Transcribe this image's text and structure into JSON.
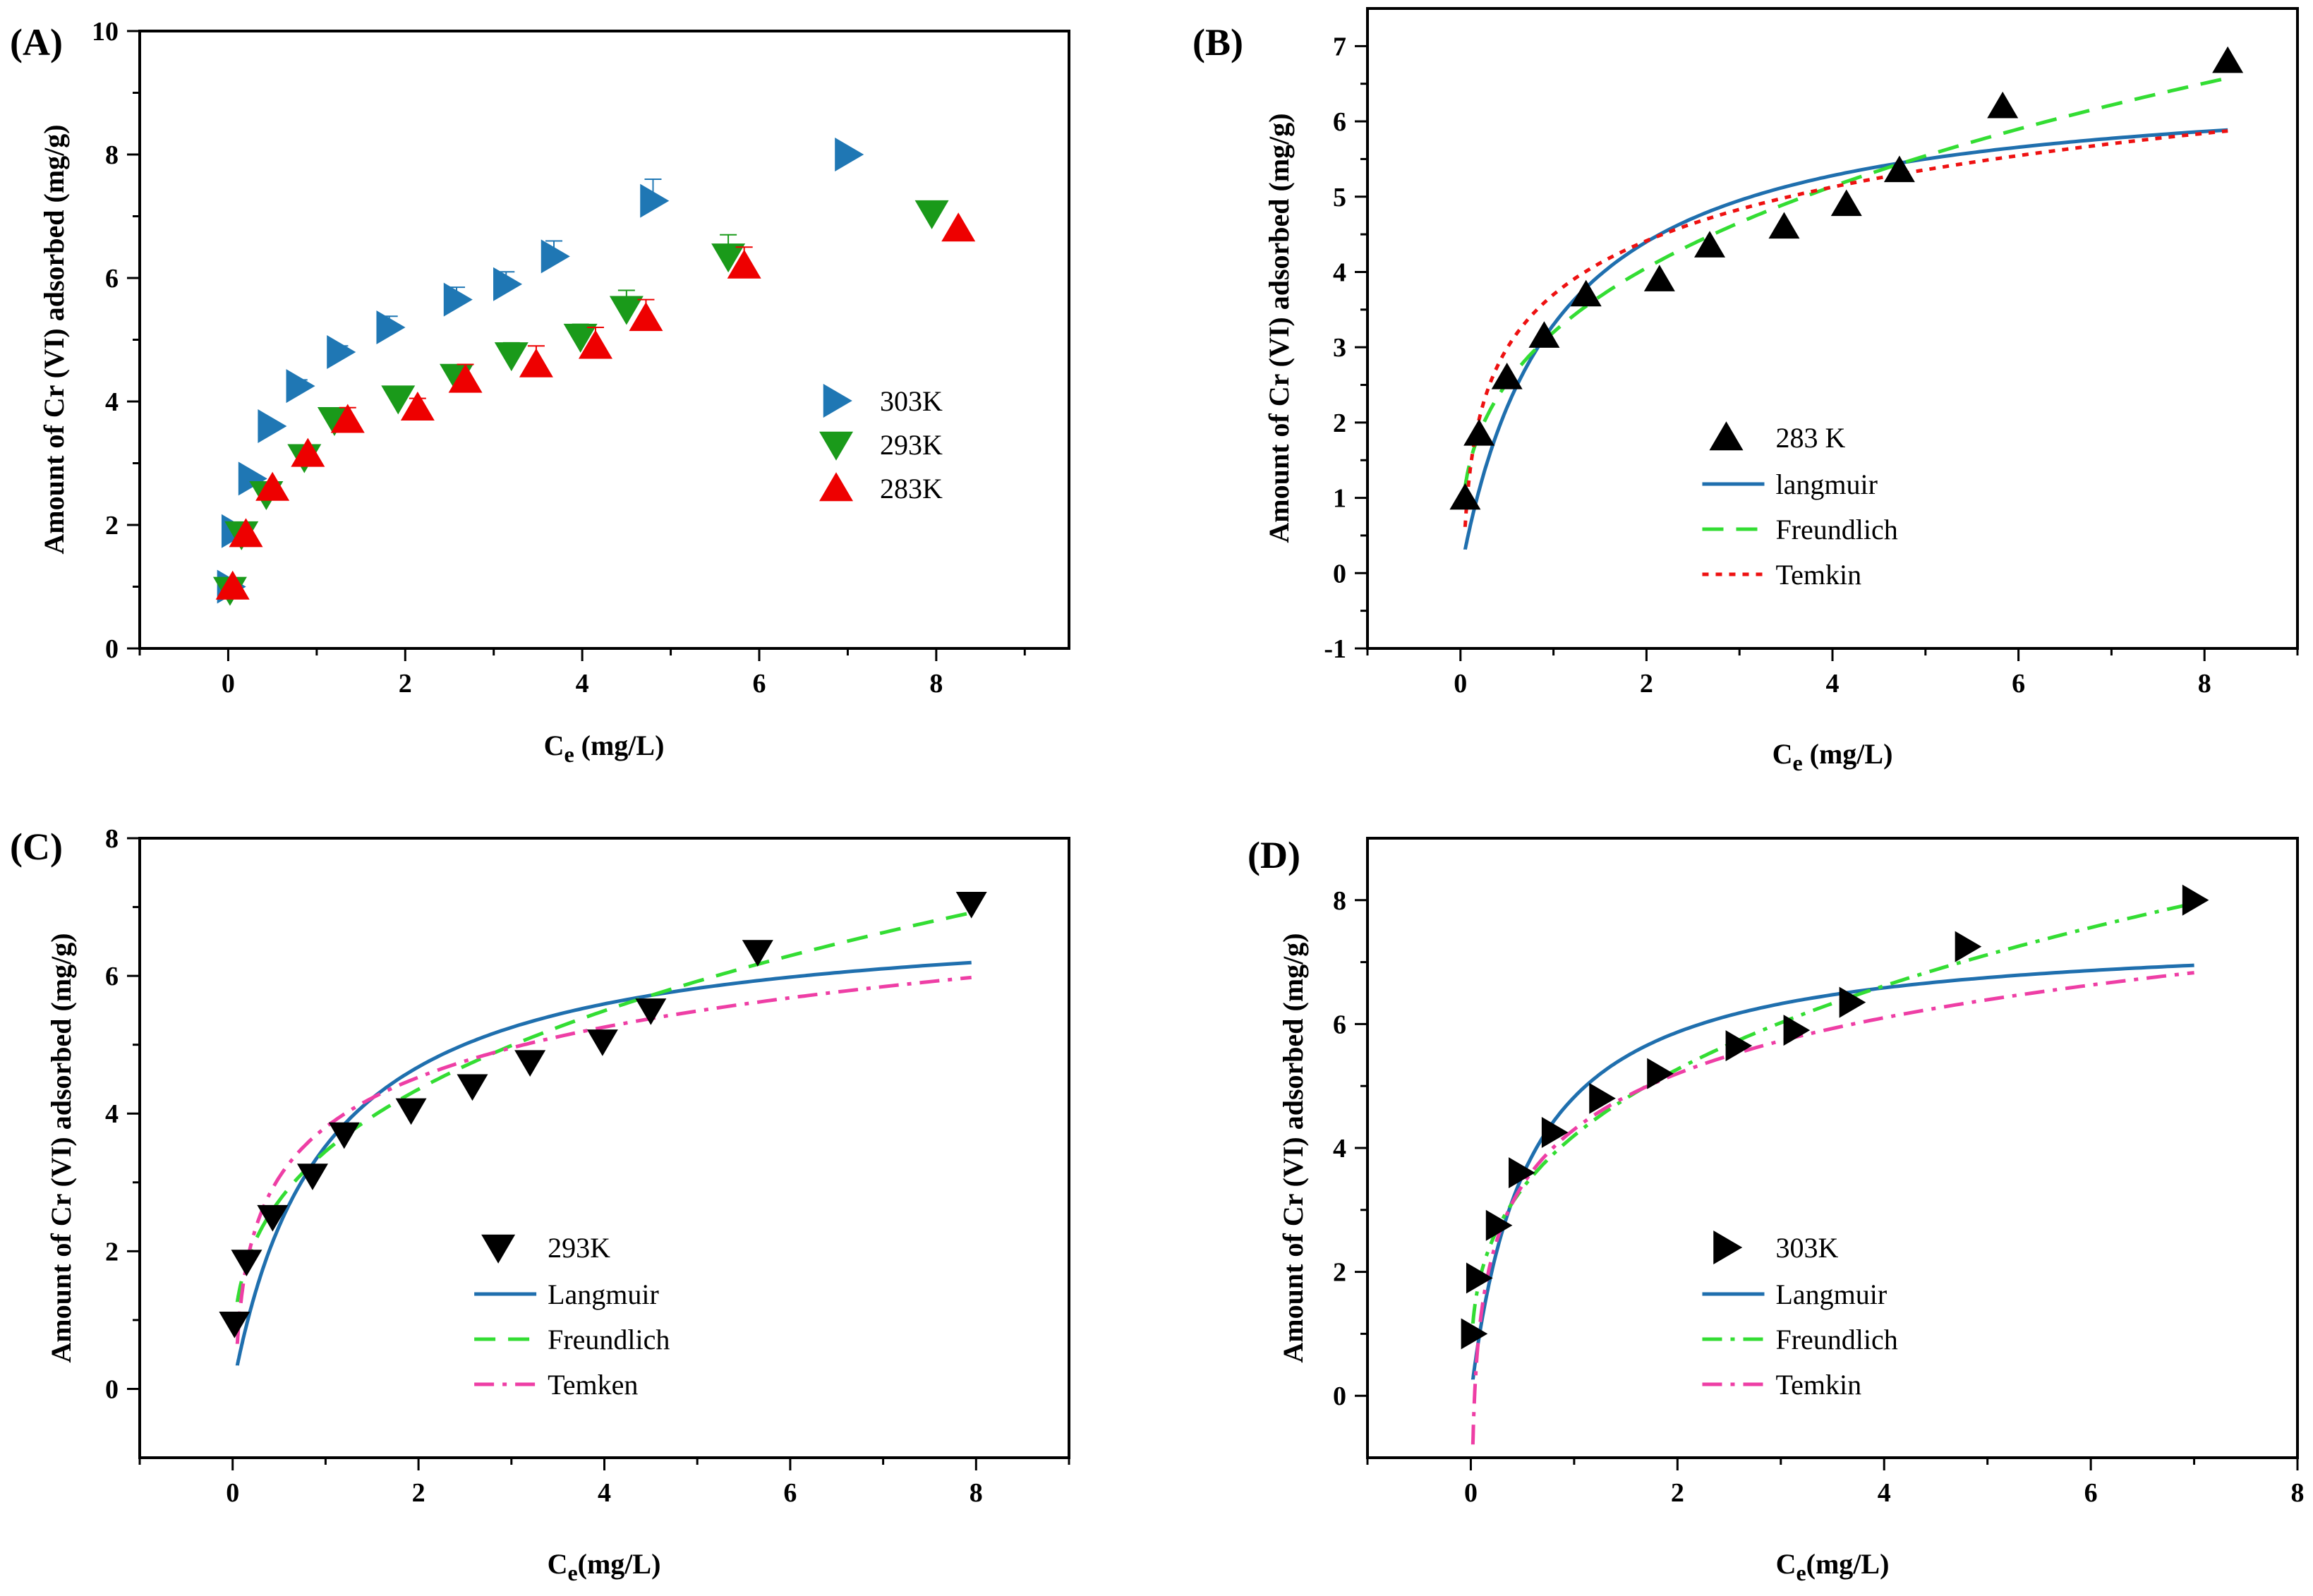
{
  "figure": {
    "panels": [
      "(A)",
      "(B)",
      "(C)",
      "(D)"
    ]
  },
  "chart_data": [
    {
      "panel": "(A)",
      "type": "scatter",
      "xlabel_main": "C",
      "xlabel_sub": "e",
      "xlabel_rest": " (mg/L)",
      "ylabel": "Amount of Cr (VI) adsorbed (mg/g)",
      "xlim": [
        -1,
        9.5
      ],
      "ylim": [
        0,
        10
      ],
      "xticks": [
        0,
        2,
        4,
        6,
        8
      ],
      "yticks": [
        0,
        2,
        4,
        6,
        8,
        10
      ],
      "legend_position": "right-middle",
      "series": [
        {
          "name": "303K",
          "marker": "triangle-right",
          "color": "#1f77b4",
          "x": [
            0.02,
            0.07,
            0.26,
            0.48,
            0.8,
            1.26,
            1.82,
            2.58,
            3.14,
            3.68,
            4.8,
            7.0
          ],
          "y": [
            1.0,
            1.9,
            2.75,
            3.6,
            4.25,
            4.8,
            5.2,
            5.65,
            5.9,
            6.35,
            7.25,
            8.0
          ],
          "err": [
            0,
            0,
            0,
            0,
            0.1,
            0.1,
            0.18,
            0.2,
            0.2,
            0.25,
            0.35,
            0
          ]
        },
        {
          "name": "293K",
          "marker": "triangle-down",
          "color": "#1a9a1a",
          "x": [
            0.02,
            0.15,
            0.43,
            0.86,
            1.2,
            1.92,
            2.58,
            3.2,
            3.98,
            4.5,
            5.65,
            7.95
          ],
          "y": [
            0.95,
            1.85,
            2.5,
            3.1,
            3.7,
            4.05,
            4.4,
            4.75,
            5.05,
            5.5,
            6.35,
            7.05
          ],
          "err": [
            0,
            0,
            0,
            0,
            0,
            0.15,
            0.15,
            0.2,
            0.2,
            0.3,
            0.35,
            0
          ]
        },
        {
          "name": "283K",
          "marker": "triangle-up",
          "color": "#ee0000",
          "x": [
            0.05,
            0.2,
            0.5,
            0.9,
            1.35,
            2.14,
            2.68,
            3.48,
            4.15,
            4.72,
            5.83,
            8.25
          ],
          "y": [
            1.0,
            1.85,
            2.6,
            3.15,
            3.7,
            3.9,
            4.35,
            4.6,
            4.9,
            5.35,
            6.2,
            6.8
          ],
          "err": [
            0,
            0,
            0,
            0,
            0.2,
            0.15,
            0.25,
            0.3,
            0.3,
            0.3,
            0.3,
            0
          ]
        }
      ]
    },
    {
      "panel": "(B)",
      "type": "scatter",
      "xlabel_main": "C",
      "xlabel_sub": "e",
      "xlabel_rest": " (mg/L)",
      "ylabel": "Amount of Cr (VI) adsorbed (mg/g)",
      "xlim": [
        -1,
        9
      ],
      "ylim": [
        -1,
        7.5
      ],
      "xticks": [
        0,
        2,
        4,
        6,
        8
      ],
      "yticks": [
        -1,
        0,
        1,
        2,
        3,
        4,
        5,
        6,
        7
      ],
      "legend_position": "right-middle",
      "points": {
        "name": "283 K",
        "marker": "triangle-up",
        "color": "#000000",
        "x": [
          0.05,
          0.2,
          0.5,
          0.9,
          1.35,
          2.14,
          2.68,
          3.48,
          4.15,
          4.72,
          5.83,
          8.25
        ],
        "y": [
          1.0,
          1.85,
          2.6,
          3.15,
          3.7,
          3.9,
          4.35,
          4.6,
          4.9,
          5.35,
          6.2,
          6.8
        ]
      },
      "fits": [
        {
          "name": "langmuir",
          "style": "solid",
          "color": "#1f6fae",
          "model": "langmuir",
          "params": {
            "qm": 6.6,
            "k": 1.0
          },
          "x0": 0.05,
          "x1": 8.25
        },
        {
          "name": "Freundlich",
          "style": "dashed",
          "color": "#33dd33",
          "model": "freundlich",
          "params": {
            "kf": 3.2,
            "n": 2.93
          },
          "x0": 0.05,
          "x1": 8.25
        },
        {
          "name": "Temkin",
          "style": "dotted",
          "color": "#ee1111",
          "model": "temkin",
          "params": {
            "a": 3.7,
            "b": 1.03
          },
          "x0": 0.05,
          "x1": 8.25
        }
      ]
    },
    {
      "panel": "(C)",
      "type": "scatter",
      "xlabel_main": "C",
      "xlabel_sub": "e",
      "xlabel_rest": "(mg/L)",
      "ylabel": "Amount of Cr (VI) adsorbed (mg/g)",
      "xlim": [
        -1,
        9
      ],
      "ylim": [
        -1,
        8
      ],
      "xticks": [
        0,
        2,
        4,
        6,
        8
      ],
      "yticks": [
        0,
        2,
        4,
        6,
        8
      ],
      "legend_position": "right-bottom",
      "points": {
        "name": "293K",
        "marker": "triangle-down",
        "color": "#000000",
        "x": [
          0.02,
          0.15,
          0.43,
          0.86,
          1.2,
          1.92,
          2.58,
          3.2,
          3.98,
          4.5,
          5.65,
          7.95
        ],
        "y": [
          0.95,
          1.85,
          2.5,
          3.1,
          3.7,
          4.05,
          4.4,
          4.75,
          5.05,
          5.5,
          6.35,
          7.05
        ]
      },
      "fits": [
        {
          "name": "Langmuir",
          "style": "solid",
          "color": "#1f6fae",
          "model": "langmuir",
          "params": {
            "qm": 6.95,
            "k": 1.03
          },
          "x0": 0.05,
          "x1": 7.95
        },
        {
          "name": "Freundlich",
          "style": "dashed",
          "color": "#33dd33",
          "model": "freundlich",
          "params": {
            "kf": 3.45,
            "n": 2.98
          },
          "x0": 0.05,
          "x1": 7.95
        },
        {
          "name": "Temken",
          "style": "dashdot",
          "color": "#ee3ea5",
          "model": "temkin",
          "params": {
            "a": 3.8,
            "b": 1.05
          },
          "x0": 0.05,
          "x1": 7.95
        }
      ]
    },
    {
      "panel": "(D)",
      "type": "scatter",
      "xlabel_main": "C",
      "xlabel_sub": "e",
      "xlabel_rest": "(mg/L)",
      "ylabel": "Amount of Cr (VI) adsorbed (mg/g)",
      "xlim": [
        -1,
        8
      ],
      "ylim": [
        -1,
        9
      ],
      "xticks": [
        0,
        2,
        4,
        6,
        8
      ],
      "yticks": [
        0,
        2,
        4,
        6,
        8
      ],
      "legend_position": "right-bottom",
      "points": {
        "name": "303K",
        "marker": "triangle-right",
        "color": "#000000",
        "x": [
          0.02,
          0.07,
          0.26,
          0.48,
          0.8,
          1.26,
          1.82,
          2.58,
          3.14,
          3.68,
          4.8,
          7.0
        ],
        "y": [
          1.0,
          1.9,
          2.75,
          3.6,
          4.25,
          4.8,
          5.2,
          5.65,
          5.9,
          6.35,
          7.25,
          8.0
        ]
      },
      "fits": [
        {
          "name": "Langmuir",
          "style": "solid",
          "color": "#1f6fae",
          "model": "langmuir",
          "params": {
            "qm": 7.5,
            "k": 1.8
          },
          "x0": 0.02,
          "x1": 7.0
        },
        {
          "name": "Freundlich",
          "style": "dashdot",
          "color": "#33dd33",
          "model": "freundlich",
          "params": {
            "kf": 4.2,
            "n": 3.05
          },
          "x0": 0.02,
          "x1": 7.0
        },
        {
          "name": "Temkin",
          "style": "dashdot",
          "color": "#ee3ea5",
          "model": "temkin",
          "params": {
            "a": 4.3,
            "b": 1.3
          },
          "x0": 0.02,
          "x1": 7.0
        }
      ]
    }
  ]
}
